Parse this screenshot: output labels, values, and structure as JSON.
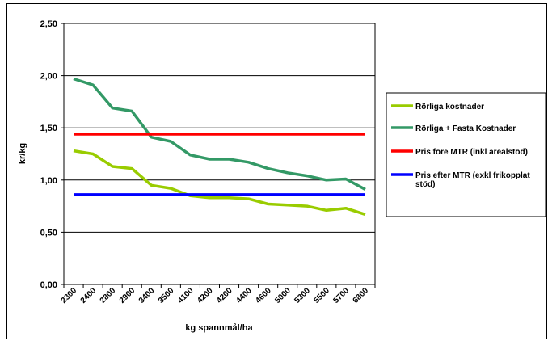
{
  "chart_data": {
    "type": "line",
    "title": "",
    "xlabel": "kg spannmål/ha",
    "ylabel": "kr/kg",
    "ylim": [
      0,
      2.5
    ],
    "yticks": [
      "0,00",
      "0,50",
      "1,00",
      "1,50",
      "2,00",
      "2,50"
    ],
    "grid": true,
    "legend_position": "right",
    "categories": [
      "2300",
      "2400",
      "2800",
      "2900",
      "3400",
      "3500",
      "4100",
      "4200",
      "4200",
      "4400",
      "4600",
      "5000",
      "5300",
      "5500",
      "5700",
      "6800"
    ],
    "series": [
      {
        "name": "Rörliga kostnader",
        "color": "#99cc00",
        "legend_lines": [
          "Rörliga kostnader"
        ],
        "values": [
          1.28,
          1.25,
          1.13,
          1.11,
          0.95,
          0.92,
          0.85,
          0.83,
          0.83,
          0.82,
          0.77,
          0.76,
          0.75,
          0.71,
          0.73,
          0.67
        ]
      },
      {
        "name": "Rörliga + Fasta Kostnader",
        "color": "#339966",
        "legend_lines": [
          "Rörliga + Fasta Kostnader"
        ],
        "values": [
          1.97,
          1.91,
          1.69,
          1.66,
          1.41,
          1.37,
          1.24,
          1.2,
          1.2,
          1.17,
          1.11,
          1.07,
          1.04,
          1.0,
          1.01,
          0.91
        ]
      },
      {
        "name": "Pris före MTR (inkl arealstöd)",
        "color": "#ff0000",
        "legend_lines": [
          "Pris före MTR (inkl arealstöd)"
        ],
        "values": [
          1.44,
          1.44,
          1.44,
          1.44,
          1.44,
          1.44,
          1.44,
          1.44,
          1.44,
          1.44,
          1.44,
          1.44,
          1.44,
          1.44,
          1.44,
          1.44
        ]
      },
      {
        "name": "Pris efter MTR (exkl frikopplat stöd)",
        "color": "#0000ff",
        "legend_lines": [
          "Pris efter MTR (exkl frikopplat",
          "stöd)"
        ],
        "values": [
          0.86,
          0.86,
          0.86,
          0.86,
          0.86,
          0.86,
          0.86,
          0.86,
          0.86,
          0.86,
          0.86,
          0.86,
          0.86,
          0.86,
          0.86,
          0.86
        ]
      }
    ]
  }
}
